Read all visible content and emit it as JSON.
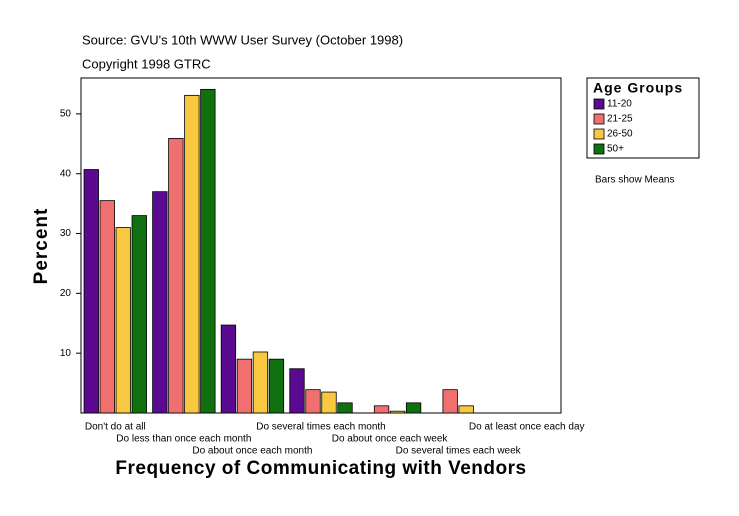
{
  "chart_data": {
    "type": "bar",
    "subtitle": "Source: GVU's 10th WWW User Survey (October 1998)",
    "copyright": "Copyright 1998 GTRC",
    "y_label": "Percent",
    "x_label": "Frequency of Communicating with Vendors",
    "legend_title": "Age Groups",
    "note": "Bars show Means",
    "categories": [
      "Don't do at all",
      "Do less than once each month",
      "Do about once each month",
      "Do several times each month",
      "Do about once each week",
      "Do several times each week",
      "Do at least once each day"
    ],
    "series": [
      {
        "name": "11-20",
        "color": "#5a0a91",
        "values": [
          40.7,
          37.0,
          14.7,
          7.4,
          0,
          0,
          0
        ]
      },
      {
        "name": "21-25",
        "color": "#f07070",
        "values": [
          35.5,
          45.9,
          9.0,
          3.9,
          1.2,
          3.9,
          0
        ]
      },
      {
        "name": "26-50",
        "color": "#f8c840",
        "values": [
          31.0,
          53.1,
          10.2,
          3.5,
          0.3,
          1.2,
          0
        ]
      },
      {
        "name": "50+",
        "color": "#107010",
        "values": [
          33.0,
          54.1,
          9.0,
          1.7,
          1.7,
          0,
          0
        ]
      }
    ],
    "ylim": [
      0,
      56
    ],
    "yticks": [
      10,
      20,
      30,
      40,
      50
    ],
    "legend": "right"
  }
}
